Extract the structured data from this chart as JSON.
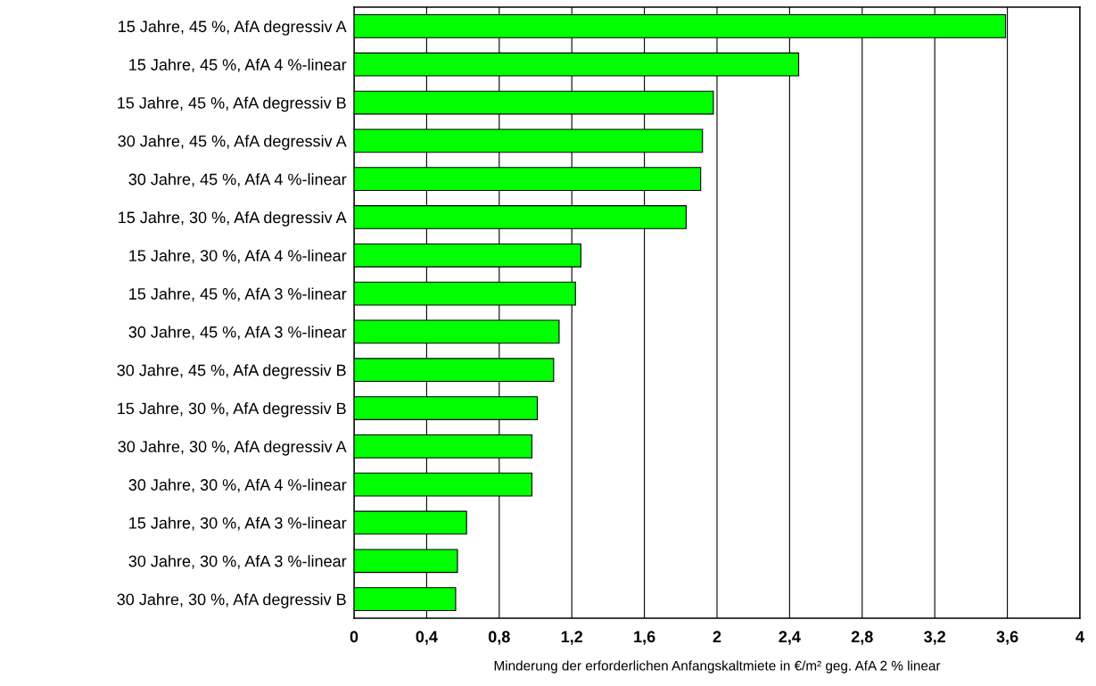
{
  "chart_data": {
    "type": "bar",
    "orientation": "horizontal",
    "xlabel": "Minderung der erforderlichen Anfangskaltmiete in €/m² geg. AfA 2 % linear",
    "categories": [
      "15 Jahre, 45 %, AfA degressiv A",
      "15 Jahre, 45 %, AfA 4 %-linear",
      "15 Jahre, 45 %, AfA degressiv B",
      "30 Jahre, 45 %, AfA degressiv A",
      "30 Jahre, 45 %, AfA 4 %-linear",
      "15 Jahre, 30 %, AfA degressiv A",
      "15 Jahre, 30 %, AfA 4 %-linear",
      "15 Jahre, 45 %, AfA 3 %-linear",
      "30 Jahre, 45 %, AfA 3 %-linear",
      "30 Jahre, 45 %, AfA degressiv B",
      "15 Jahre, 30 %, AfA degressiv B",
      "30 Jahre, 30 %, AfA degressiv A",
      "30 Jahre, 30 %, AfA 4 %-linear",
      "15 Jahre, 30 %, AfA 3 %-linear",
      "30 Jahre, 30 %, AfA 3 %-linear",
      "30 Jahre, 30 %, AfA degressiv B"
    ],
    "values": [
      3.59,
      2.45,
      1.98,
      1.92,
      1.91,
      1.83,
      1.25,
      1.22,
      1.13,
      1.1,
      1.01,
      0.98,
      0.98,
      0.62,
      0.57,
      0.56
    ],
    "color": "#00ff00",
    "xlim": [
      0,
      4
    ],
    "xticks": [
      0,
      {
        "value": 0.4,
        "label": "0,4"
      },
      {
        "value": 0.8,
        "label": "0,8"
      },
      {
        "value": 1.2,
        "label": "1,2"
      },
      {
        "value": 1.6,
        "label": "1,6"
      },
      2,
      {
        "value": 2.4,
        "label": "2,4"
      },
      {
        "value": 2.8,
        "label": "2,8"
      },
      {
        "value": 3.2,
        "label": "3,2"
      },
      {
        "value": 3.6,
        "label": "3,6"
      },
      4
    ],
    "grid": "x"
  }
}
